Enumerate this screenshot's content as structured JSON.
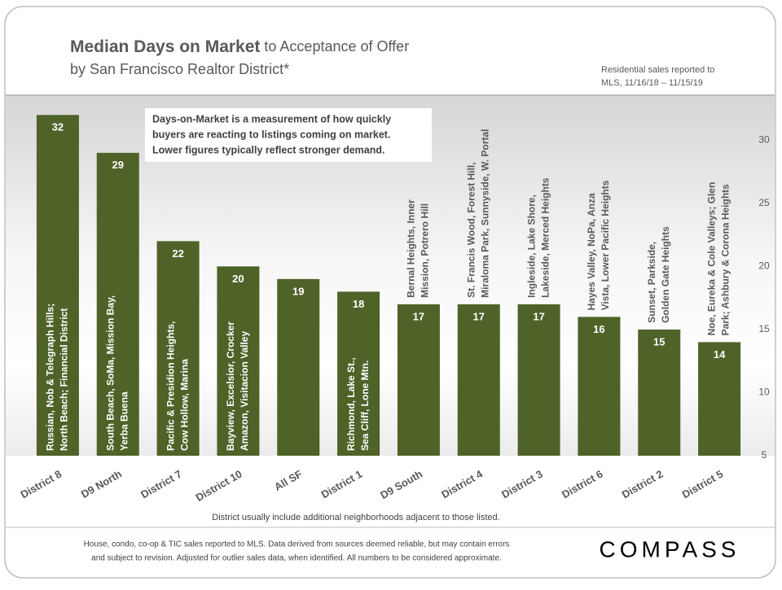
{
  "chart_data": {
    "type": "bar",
    "title": "Median Days on Market",
    "title_suffix": "to Acceptance of Offer",
    "subtitle": "by San Francisco Realtor District*",
    "source_note": [
      "Residential sales reported to",
      "MLS, 11/16/18 – 11/15/19"
    ],
    "annotation": [
      "Days-on-Market is a measurement of how quickly",
      "buyers are reacting to listings coming on market.",
      "Lower figures typically reflect stronger demand."
    ],
    "categories": [
      "District 8",
      "D9 North",
      "District 7",
      "District 10",
      "All SF",
      "District 1",
      "D9 South",
      "District 4",
      "District 3",
      "District 6",
      "District 2",
      "District 5"
    ],
    "values": [
      32,
      29,
      22,
      20,
      19,
      18,
      17,
      17,
      17,
      16,
      15,
      14
    ],
    "neighborhoods": [
      [
        "Russian, Nob & Telegraph Hills;",
        "North Beach; Financial District"
      ],
      [
        "South Beach, SoMa, Mission Bay,",
        "Yerba Buena"
      ],
      [
        "Pacific  & Presidion Heights,",
        "Cow Hollow, Marina"
      ],
      [
        "Bayview, Excelsior, Crocker",
        "Amazon, Visitacion Valley"
      ],
      null,
      [
        "Richmond, Lake St.,",
        "Sea Cliff, Lone Mtn."
      ],
      [
        "Bernal Heights, Inner",
        "Mission, Potrero Hill"
      ],
      [
        "St. Francis Wood, Forest Hill,",
        "Miraloma Park, Sunnyside, W. Portal"
      ],
      [
        "Ingleside, Lake Shore,",
        "Lakeside, Merced Heights"
      ],
      [
        "Hayes Valley, NoPa, Anza",
        "Vista, Lower Pacific Heights"
      ],
      [
        "Sunset, Parkside,",
        "Golden Gate Heights"
      ],
      [
        "Noe, Eureka & Cole Valleys; Glen",
        "Park; Ashbury & Corona Heights"
      ]
    ],
    "neighborhood_label_position": [
      "inside",
      "inside",
      "inside",
      "inside",
      null,
      "inside",
      "above",
      "above",
      "above",
      "above",
      "above",
      "above"
    ],
    "color": "#4f6228",
    "ylim": [
      5,
      33.5
    ],
    "yticks": [
      5,
      10,
      15,
      20,
      25,
      30
    ],
    "grid": false,
    "axis_note": "District usually include additional neighborhoods adjacent to those listed.",
    "footer": [
      "House, condo, co-op & TIC sales reported to MLS. Data derived from sources deemed reliable, but may contain errors",
      "and subject to revision. Adjusted for outlier sales data, when identified. All numbers to be considered approximate."
    ],
    "brand": "COMPASS"
  }
}
